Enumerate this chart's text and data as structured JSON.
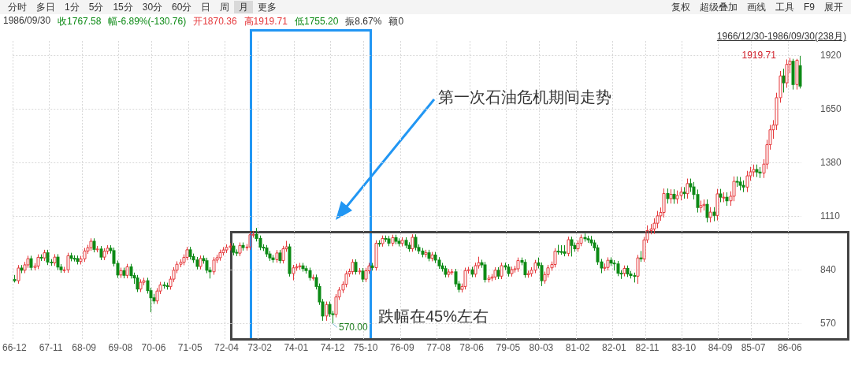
{
  "chart_data": {
    "type": "candlestick",
    "categories": [
      "66-12",
      null,
      null,
      null,
      null,
      null,
      null,
      null,
      null,
      null,
      null,
      "67-11",
      null,
      null,
      null,
      null,
      null,
      null,
      null,
      null,
      null,
      "68-09",
      null,
      null,
      null,
      null,
      null,
      null,
      null,
      null,
      null,
      null,
      "69-08",
      null,
      null,
      null,
      null,
      null,
      null,
      null,
      null,
      null,
      "70-06",
      null,
      null,
      null,
      null,
      null,
      null,
      null,
      null,
      null,
      null,
      "71-05",
      null,
      null,
      null,
      null,
      null,
      null,
      null,
      null,
      null,
      null,
      "72-04",
      null,
      null,
      null,
      null,
      null,
      null,
      null,
      null,
      null,
      "73-02",
      null,
      null,
      null,
      null,
      null,
      null,
      null,
      null,
      null,
      null,
      "74-01",
      null,
      null,
      null,
      null,
      null,
      null,
      null,
      null,
      null,
      null,
      "74-12",
      null,
      null,
      null,
      null,
      null,
      null,
      null,
      null,
      null,
      "75-10",
      null,
      null,
      null,
      null,
      null,
      null,
      null,
      null,
      null,
      null,
      "76-09",
      null,
      null,
      null,
      null,
      null,
      null,
      null,
      null,
      null,
      null,
      "77-08",
      null,
      null,
      null,
      null,
      null,
      null,
      null,
      null,
      null,
      "78-06",
      null,
      null,
      null,
      null,
      null,
      null,
      null,
      null,
      null,
      null,
      "79-05",
      null,
      null,
      null,
      null,
      null,
      null,
      null,
      null,
      null,
      "80-03",
      null,
      null,
      null,
      null,
      null,
      null,
      null,
      null,
      null,
      null,
      "81-02",
      null,
      null,
      null,
      null,
      null,
      null,
      null,
      null,
      null,
      null,
      "82-01",
      null,
      null,
      null,
      null,
      null,
      null,
      null,
      null,
      null,
      "82-11",
      null,
      null,
      null,
      null,
      null,
      null,
      null,
      null,
      null,
      null,
      "83-10",
      null,
      null,
      null,
      null,
      null,
      null,
      null,
      null,
      null,
      null,
      "84-09",
      null,
      null,
      null,
      null,
      null,
      null,
      null,
      null,
      null,
      "85-07",
      null,
      null,
      null,
      null,
      null,
      null,
      null,
      null,
      null,
      null,
      "86-06",
      null,
      null,
      null
    ],
    "ohlc": [
      [
        792,
        815,
        777,
        786
      ],
      [
        786,
        865,
        771,
        850
      ],
      [
        850,
        865,
        824,
        839
      ],
      [
        839,
        881,
        824,
        866
      ],
      [
        866,
        912,
        851,
        897
      ],
      [
        897,
        912,
        838,
        853
      ],
      [
        853,
        875,
        838,
        860
      ],
      [
        860,
        919,
        845,
        904
      ],
      [
        904,
        919,
        886,
        901
      ],
      [
        901,
        942,
        886,
        927
      ],
      [
        927,
        942,
        865,
        880
      ],
      [
        880,
        895,
        861,
        876
      ],
      [
        876,
        920,
        861,
        905
      ],
      [
        905,
        920,
        840,
        855
      ],
      [
        855,
        870,
        826,
        841
      ],
      [
        841,
        856,
        826,
        841
      ],
      [
        841,
        927,
        826,
        912
      ],
      [
        912,
        927,
        884,
        899
      ],
      [
        899,
        914,
        883,
        898
      ],
      [
        898,
        913,
        868,
        883
      ],
      [
        883,
        911,
        868,
        896
      ],
      [
        896,
        951,
        881,
        936
      ],
      [
        936,
        967,
        921,
        952
      ],
      [
        952,
        1000,
        937,
        985
      ],
      [
        985,
        1000,
        929,
        944
      ],
      [
        944,
        961,
        929,
        946
      ],
      [
        946,
        961,
        890,
        905
      ],
      [
        905,
        950,
        890,
        935
      ],
      [
        935,
        965,
        920,
        950
      ],
      [
        950,
        965,
        923,
        938
      ],
      [
        938,
        953,
        858,
        873
      ],
      [
        873,
        888,
        800,
        815
      ],
      [
        815,
        852,
        800,
        837
      ],
      [
        837,
        852,
        798,
        813
      ],
      [
        813,
        871,
        798,
        856
      ],
      [
        856,
        871,
        797,
        812
      ],
      [
        812,
        827,
        770,
        800
      ],
      [
        800,
        815,
        729,
        744
      ],
      [
        744,
        793,
        729,
        778
      ],
      [
        778,
        801,
        763,
        786
      ],
      [
        786,
        801,
        721,
        736
      ],
      [
        736,
        751,
        627,
        700
      ],
      [
        700,
        720,
        669,
        684
      ],
      [
        684,
        749,
        669,
        734
      ],
      [
        734,
        780,
        719,
        765
      ],
      [
        765,
        780,
        746,
        761
      ],
      [
        761,
        776,
        741,
        756
      ],
      [
        756,
        809,
        741,
        794
      ],
      [
        794,
        854,
        779,
        839
      ],
      [
        839,
        884,
        824,
        869
      ],
      [
        869,
        894,
        854,
        879
      ],
      [
        879,
        919,
        864,
        904
      ],
      [
        904,
        957,
        889,
        942
      ],
      [
        942,
        957,
        893,
        908
      ],
      [
        908,
        923,
        876,
        891
      ],
      [
        891,
        906,
        843,
        858
      ],
      [
        858,
        913,
        843,
        898
      ],
      [
        898,
        913,
        872,
        887
      ],
      [
        887,
        902,
        824,
        839
      ],
      [
        839,
        854,
        797,
        831
      ],
      [
        831,
        905,
        816,
        890
      ],
      [
        890,
        917,
        875,
        902
      ],
      [
        902,
        943,
        887,
        928
      ],
      [
        928,
        956,
        913,
        941
      ],
      [
        941,
        969,
        926,
        954
      ],
      [
        954,
        976,
        939,
        961
      ],
      [
        961,
        976,
        914,
        929
      ],
      [
        929,
        944,
        910,
        925
      ],
      [
        925,
        979,
        910,
        964
      ],
      [
        964,
        979,
        938,
        953
      ],
      [
        953,
        971,
        938,
        956
      ],
      [
        956,
        1033,
        941,
        1018
      ],
      [
        1018,
        1036,
        1003,
        1020
      ],
      [
        1020,
        1052,
        984,
        999
      ],
      [
        999,
        1014,
        940,
        955
      ],
      [
        955,
        970,
        936,
        951
      ],
      [
        951,
        966,
        906,
        921
      ],
      [
        921,
        936,
        886,
        901
      ],
      [
        901,
        916,
        877,
        892
      ],
      [
        892,
        941,
        877,
        926
      ],
      [
        926,
        941,
        873,
        888
      ],
      [
        888,
        962,
        873,
        947
      ],
      [
        947,
        987,
        932,
        957
      ],
      [
        957,
        972,
        807,
        822
      ],
      [
        822,
        866,
        788,
        851
      ],
      [
        851,
        871,
        836,
        856
      ],
      [
        856,
        876,
        841,
        861
      ],
      [
        861,
        876,
        832,
        847
      ],
      [
        847,
        862,
        822,
        837
      ],
      [
        837,
        852,
        787,
        802
      ],
      [
        802,
        817,
        787,
        802
      ],
      [
        802,
        817,
        742,
        757
      ],
      [
        757,
        772,
        664,
        679
      ],
      [
        679,
        694,
        584,
        608
      ],
      [
        608,
        681,
        584,
        666
      ],
      [
        666,
        681,
        604,
        619
      ],
      [
        619,
        634,
        570,
        616
      ],
      [
        616,
        719,
        601,
        704
      ],
      [
        704,
        754,
        689,
        739
      ],
      [
        739,
        783,
        724,
        768
      ],
      [
        768,
        836,
        753,
        821
      ],
      [
        821,
        847,
        806,
        832
      ],
      [
        832,
        894,
        817,
        879
      ],
      [
        879,
        894,
        817,
        832
      ],
      [
        832,
        850,
        817,
        835
      ],
      [
        835,
        850,
        779,
        794
      ],
      [
        794,
        851,
        779,
        836
      ],
      [
        836,
        876,
        821,
        861
      ],
      [
        861,
        876,
        837,
        852
      ],
      [
        852,
        990,
        837,
        975
      ],
      [
        975,
        990,
        958,
        973
      ],
      [
        973,
        1014,
        958,
        999
      ],
      [
        999,
        1014,
        982,
        997
      ],
      [
        997,
        1012,
        960,
        975
      ],
      [
        975,
        1018,
        960,
        1003
      ],
      [
        1003,
        1018,
        970,
        985
      ],
      [
        985,
        1000,
        959,
        974
      ],
      [
        974,
        1005,
        959,
        990
      ],
      [
        990,
        1005,
        950,
        965
      ],
      [
        965,
        980,
        932,
        947
      ],
      [
        947,
        1020,
        932,
        1005
      ],
      [
        1005,
        1020,
        939,
        954
      ],
      [
        954,
        969,
        921,
        936
      ],
      [
        936,
        951,
        904,
        919
      ],
      [
        919,
        942,
        904,
        927
      ],
      [
        927,
        942,
        884,
        899
      ],
      [
        899,
        931,
        884,
        916
      ],
      [
        916,
        931,
        875,
        890
      ],
      [
        890,
        905,
        846,
        861
      ],
      [
        861,
        876,
        832,
        847
      ],
      [
        847,
        862,
        803,
        818
      ],
      [
        818,
        845,
        803,
        830
      ],
      [
        830,
        846,
        815,
        831
      ],
      [
        831,
        846,
        755,
        770
      ],
      [
        770,
        785,
        727,
        742
      ],
      [
        742,
        772,
        727,
        757
      ],
      [
        757,
        852,
        742,
        837
      ],
      [
        837,
        856,
        822,
        841
      ],
      [
        841,
        856,
        804,
        819
      ],
      [
        819,
        877,
        804,
        862
      ],
      [
        862,
        907,
        847,
        877
      ],
      [
        877,
        892,
        851,
        866
      ],
      [
        866,
        881,
        777,
        792
      ],
      [
        792,
        814,
        777,
        799
      ],
      [
        799,
        820,
        784,
        805
      ],
      [
        805,
        854,
        790,
        839
      ],
      [
        839,
        854,
        794,
        809
      ],
      [
        809,
        877,
        794,
        862
      ],
      [
        862,
        877,
        840,
        855
      ],
      [
        855,
        870,
        807,
        822
      ],
      [
        822,
        857,
        807,
        842
      ],
      [
        842,
        861,
        827,
        846
      ],
      [
        846,
        903,
        831,
        888
      ],
      [
        888,
        903,
        864,
        879
      ],
      [
        879,
        894,
        801,
        816
      ],
      [
        816,
        837,
        801,
        822
      ],
      [
        822,
        854,
        807,
        839
      ],
      [
        839,
        891,
        824,
        876
      ],
      [
        876,
        903,
        848,
        863
      ],
      [
        863,
        878,
        759,
        786
      ],
      [
        786,
        832,
        771,
        817
      ],
      [
        817,
        866,
        802,
        851
      ],
      [
        851,
        883,
        836,
        868
      ],
      [
        868,
        950,
        853,
        935
      ],
      [
        935,
        967,
        918,
        933
      ],
      [
        933,
        965,
        917,
        932
      ],
      [
        932,
        965,
        909,
        924
      ],
      [
        924,
        1008,
        909,
        993
      ],
      [
        993,
        1008,
        908,
        964
      ],
      [
        964,
        979,
        932,
        947
      ],
      [
        947,
        990,
        932,
        975
      ],
      [
        975,
        1019,
        960,
        1004
      ],
      [
        1004,
        1024,
        983,
        998
      ],
      [
        998,
        1013,
        977,
        992
      ],
      [
        992,
        1012,
        962,
        977
      ],
      [
        977,
        992,
        937,
        952
      ],
      [
        952,
        967,
        866,
        881
      ],
      [
        881,
        896,
        824,
        850
      ],
      [
        850,
        873,
        835,
        853
      ],
      [
        853,
        904,
        838,
        889
      ],
      [
        889,
        904,
        860,
        875
      ],
      [
        875,
        890,
        837,
        871
      ],
      [
        871,
        886,
        809,
        824
      ],
      [
        824,
        839,
        795,
        823
      ],
      [
        823,
        863,
        808,
        848
      ],
      [
        848,
        863,
        805,
        820
      ],
      [
        820,
        835,
        797,
        812
      ],
      [
        812,
        827,
        777,
        809
      ],
      [
        809,
        916,
        770,
        901
      ],
      [
        901,
        936,
        881,
        896
      ],
      [
        896,
        1007,
        881,
        992
      ],
      [
        992,
        1065,
        977,
        1039
      ],
      [
        1039,
        1072,
        1020,
        1047
      ],
      [
        1047,
        1101,
        1022,
        1076
      ],
      [
        1076,
        1138,
        1051,
        1113
      ],
      [
        1113,
        1155,
        1088,
        1130
      ],
      [
        1130,
        1251,
        1105,
        1226
      ],
      [
        1226,
        1251,
        1175,
        1200
      ],
      [
        1200,
        1247,
        1175,
        1222
      ],
      [
        1222,
        1247,
        1174,
        1199
      ],
      [
        1199,
        1241,
        1174,
        1216
      ],
      [
        1216,
        1258,
        1191,
        1233
      ],
      [
        1233,
        1258,
        1200,
        1225
      ],
      [
        1225,
        1301,
        1200,
        1276
      ],
      [
        1276,
        1301,
        1234,
        1259
      ],
      [
        1259,
        1284,
        1196,
        1221
      ],
      [
        1221,
        1246,
        1130,
        1155
      ],
      [
        1155,
        1190,
        1130,
        1165
      ],
      [
        1165,
        1196,
        1140,
        1171
      ],
      [
        1171,
        1196,
        1080,
        1105
      ],
      [
        1105,
        1157,
        1080,
        1132
      ],
      [
        1132,
        1157,
        1086,
        1115
      ],
      [
        1115,
        1249,
        1090,
        1224
      ],
      [
        1224,
        1249,
        1182,
        1207
      ],
      [
        1207,
        1232,
        1182,
        1207
      ],
      [
        1207,
        1232,
        1164,
        1189
      ],
      [
        1189,
        1237,
        1164,
        1212
      ],
      [
        1212,
        1312,
        1187,
        1287
      ],
      [
        1287,
        1312,
        1259,
        1284
      ],
      [
        1284,
        1309,
        1242,
        1267
      ],
      [
        1267,
        1292,
        1233,
        1258
      ],
      [
        1258,
        1340,
        1233,
        1315
      ],
      [
        1315,
        1360,
        1290,
        1335
      ],
      [
        1335,
        1372,
        1310,
        1347
      ],
      [
        1347,
        1372,
        1309,
        1334
      ],
      [
        1334,
        1359,
        1304,
        1329
      ],
      [
        1329,
        1399,
        1304,
        1374
      ],
      [
        1374,
        1497,
        1349,
        1472
      ],
      [
        1472,
        1572,
        1447,
        1547
      ],
      [
        1547,
        1596,
        1502,
        1571
      ],
      [
        1571,
        1734,
        1546,
        1709
      ],
      [
        1709,
        1844,
        1684,
        1819
      ],
      [
        1819,
        1855,
        1735,
        1784
      ],
      [
        1784,
        1902,
        1759,
        1877
      ],
      [
        1877,
        1910,
        1832,
        1893
      ],
      [
        1893,
        1905,
        1750,
        1775
      ],
      [
        1775,
        1905,
        1750,
        1898
      ],
      [
        1870.36,
        1919.71,
        1755.2,
        1767.58
      ]
    ],
    "colors": [
      "#0c8a15",
      "#e5383b",
      "#0c8a15",
      "#e5383b",
      "#e5383b",
      "#0c8a15",
      "#e5383b",
      "#e5383b",
      "#0c8a15",
      "#e5383b",
      "#0c8a15",
      "#0c8a15",
      "#e5383b",
      "#0c8a15",
      "#0c8a15",
      "#e5383b",
      "#e5383b",
      "#0c8a15",
      "#0c8a15",
      "#0c8a15",
      "#e5383b",
      "#e5383b",
      "#e5383b",
      "#e5383b",
      "#0c8a15",
      "#e5383b",
      "#0c8a15",
      "#e5383b",
      "#e5383b",
      "#0c8a15",
      "#0c8a15",
      "#0c8a15",
      "#e5383b",
      "#0c8a15",
      "#e5383b",
      "#0c8a15",
      "#0c8a15",
      "#0c8a15",
      "#e5383b",
      "#e5383b",
      "#0c8a15",
      "#0c8a15",
      "#0c8a15",
      "#e5383b",
      "#e5383b",
      "#0c8a15",
      "#0c8a15",
      "#e5383b",
      "#e5383b",
      "#e5383b",
      "#e5383b",
      "#e5383b",
      "#e5383b",
      "#0c8a15",
      "#0c8a15",
      "#0c8a15",
      "#e5383b",
      "#0c8a15",
      "#0c8a15",
      "#0c8a15",
      "#e5383b",
      "#e5383b",
      "#e5383b",
      "#e5383b",
      "#e5383b",
      "#e5383b",
      "#0c8a15",
      "#0c8a15",
      "#e5383b",
      "#0c8a15",
      "#e5383b",
      "#e5383b",
      "#e5383b",
      "#0c8a15",
      "#0c8a15",
      "#0c8a15",
      "#0c8a15",
      "#0c8a15",
      "#0c8a15",
      "#e5383b",
      "#0c8a15",
      "#e5383b",
      "#e5383b",
      "#0c8a15",
      "#e5383b",
      "#e5383b",
      "#e5383b",
      "#0c8a15",
      "#0c8a15",
      "#0c8a15",
      "#e5383b",
      "#0c8a15",
      "#0c8a15",
      "#0c8a15",
      "#e5383b",
      "#0c8a15",
      "#0c8a15",
      "#e5383b",
      "#e5383b",
      "#e5383b",
      "#e5383b",
      "#e5383b",
      "#e5383b",
      "#0c8a15",
      "#e5383b",
      "#0c8a15",
      "#e5383b",
      "#e5383b",
      "#0c8a15",
      "#e5383b",
      "#0c8a15",
      "#e5383b",
      "#0c8a15",
      "#0c8a15",
      "#e5383b",
      "#0c8a15",
      "#0c8a15",
      "#e5383b",
      "#0c8a15",
      "#0c8a15",
      "#e5383b",
      "#0c8a15",
      "#0c8a15",
      "#0c8a15",
      "#e5383b",
      "#0c8a15",
      "#e5383b",
      "#0c8a15",
      "#0c8a15",
      "#0c8a15",
      "#0c8a15",
      "#e5383b",
      "#e5383b",
      "#0c8a15",
      "#0c8a15",
      "#e5383b",
      "#e5383b",
      "#e5383b",
      "#0c8a15",
      "#e5383b",
      "#e5383b",
      "#0c8a15",
      "#0c8a15",
      "#e5383b",
      "#e5383b",
      "#e5383b",
      "#0c8a15",
      "#e5383b",
      "#0c8a15",
      "#0c8a15",
      "#e5383b",
      "#e5383b",
      "#e5383b",
      "#0c8a15",
      "#0c8a15",
      "#e5383b",
      "#e5383b",
      "#e5383b",
      "#0c8a15",
      "#0c8a15",
      "#e5383b",
      "#e5383b",
      "#e5383b",
      "#e5383b",
      "#0c8a15",
      "#0c8a15",
      "#0c8a15",
      "#e5383b",
      "#0c8a15",
      "#0c8a15",
      "#e5383b",
      "#e5383b",
      "#0c8a15",
      "#0c8a15",
      "#0c8a15",
      "#0c8a15",
      "#0c8a15",
      "#0c8a15",
      "#e5383b",
      "#e5383b",
      "#0c8a15",
      "#0c8a15",
      "#0c8a15",
      "#0c8a15",
      "#e5383b",
      "#0c8a15",
      "#0c8a15",
      "#0c8a15",
      "#e5383b",
      "#0c8a15",
      "#e5383b",
      "#e5383b",
      "#e5383b",
      "#e5383b",
      "#e5383b",
      "#e5383b",
      "#e5383b",
      "#0c8a15",
      "#e5383b",
      "#0c8a15",
      "#e5383b",
      "#e5383b",
      "#0c8a15",
      "#e5383b",
      "#0c8a15",
      "#0c8a15",
      "#0c8a15",
      "#e5383b",
      "#e5383b",
      "#0c8a15",
      "#e5383b",
      "#0c8a15",
      "#e5383b",
      "#0c8a15",
      "#e5383b",
      "#0c8a15",
      "#e5383b",
      "#e5383b",
      "#0c8a15",
      "#0c8a15",
      "#0c8a15",
      "#e5383b",
      "#e5383b",
      "#e5383b",
      "#0c8a15",
      "#0c8a15",
      "#e5383b",
      "#e5383b",
      "#e5383b",
      "#e5383b",
      "#e5383b",
      "#e5383b",
      "#0c8a15",
      "#e5383b",
      "#e5383b",
      "#0c8a15",
      "#e5383b",
      "#0c8a15"
    ],
    "ylim": [
      485,
      1995
    ],
    "yticks": [
      570,
      840,
      1110,
      1380,
      1650,
      1920
    ],
    "grid": true,
    "annotations": [
      "分时",
      "多日",
      "1分",
      "5分",
      "15分",
      "30分",
      "60分",
      "日",
      "周",
      "月",
      "更多",
      "复权",
      "超级叠加",
      "画线",
      "工具",
      "F9",
      "展开",
      "1986/09/30",
      "收1767.58",
      "幅-6.89%(-130.76)",
      "开1870.36",
      "高1919.71",
      "低1755.20",
      "振8.67%",
      "额0",
      "1966/12/30-1986/09/30(238月)",
      "第一次石油危机期间走势",
      "跌幅在45%左右",
      "1919.71",
      "570.00"
    ]
  }
}
